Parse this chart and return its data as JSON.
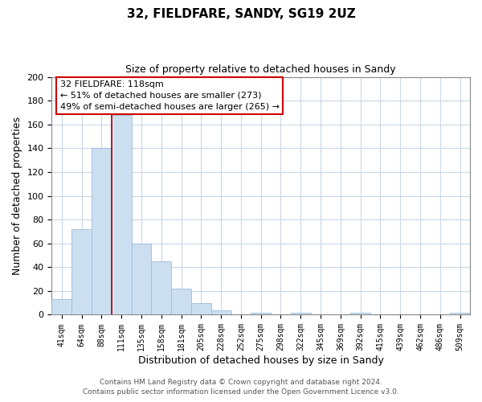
{
  "title": "32, FIELDFARE, SANDY, SG19 2UZ",
  "subtitle": "Size of property relative to detached houses in Sandy",
  "xlabel": "Distribution of detached houses by size in Sandy",
  "ylabel": "Number of detached properties",
  "bar_labels": [
    "41sqm",
    "64sqm",
    "88sqm",
    "111sqm",
    "135sqm",
    "158sqm",
    "181sqm",
    "205sqm",
    "228sqm",
    "252sqm",
    "275sqm",
    "298sqm",
    "322sqm",
    "345sqm",
    "369sqm",
    "392sqm",
    "415sqm",
    "439sqm",
    "462sqm",
    "486sqm",
    "509sqm"
  ],
  "bar_values": [
    13,
    72,
    140,
    168,
    60,
    45,
    22,
    10,
    4,
    0,
    2,
    0,
    2,
    0,
    0,
    2,
    0,
    0,
    0,
    0,
    2
  ],
  "bar_color": "#ccdff0",
  "bar_edge_color": "#9abdd8",
  "vline_x_index": 3,
  "vline_color": "#aa0000",
  "annotation_line1": "32 FIELDFARE: 118sqm",
  "annotation_line2": "← 51% of detached houses are smaller (273)",
  "annotation_line3": "49% of semi-detached houses are larger (265) →",
  "annotation_box_color": "#ffffff",
  "annotation_box_edge_color": "#cc0000",
  "ylim": [
    0,
    200
  ],
  "yticks": [
    0,
    20,
    40,
    60,
    80,
    100,
    120,
    140,
    160,
    180,
    200
  ],
  "footer1": "Contains HM Land Registry data © Crown copyright and database right 2024.",
  "footer2": "Contains public sector information licensed under the Open Government Licence v3.0.",
  "bg_color": "#ffffff",
  "grid_color": "#c8d8e8"
}
